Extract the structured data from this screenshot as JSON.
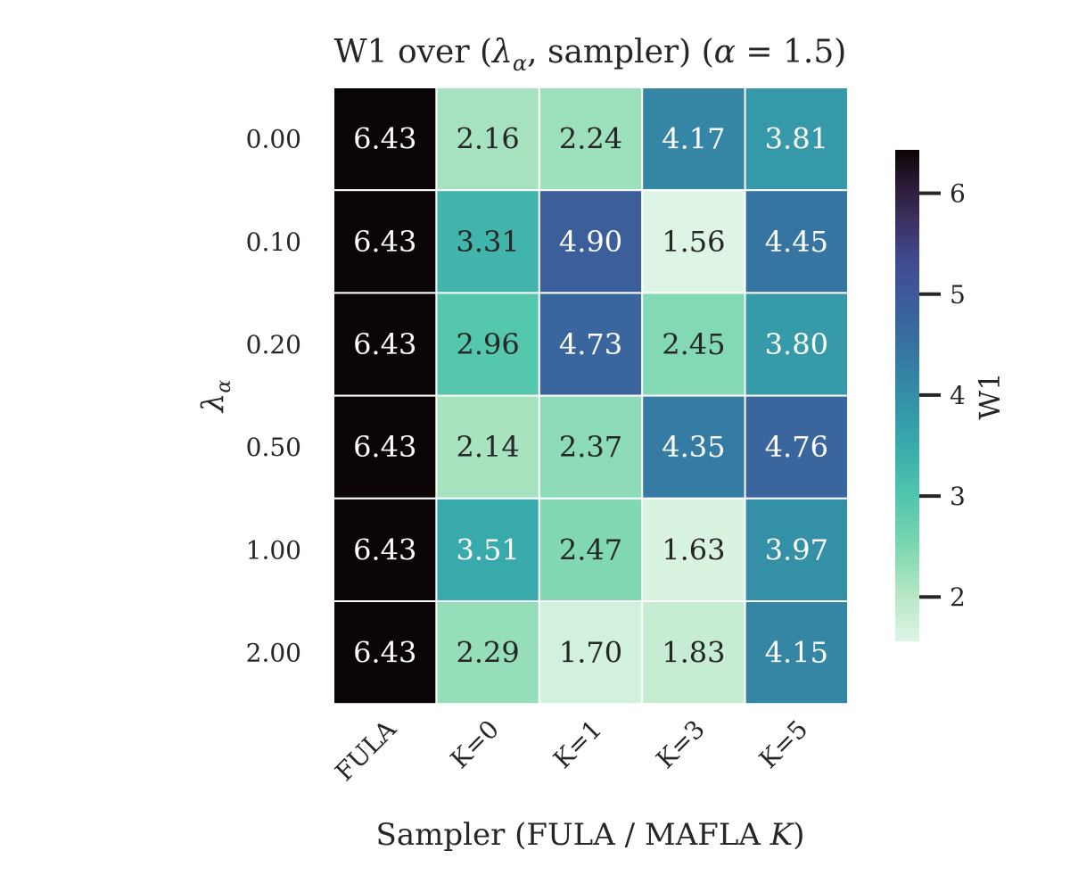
{
  "chart_data": {
    "type": "heatmap",
    "title_prefix": "W1 over (",
    "title_lambda": "λ",
    "title_lambda_sub": "α",
    "title_middle": ", sampler) (",
    "title_alpha": "α",
    "title_suffix": " = 1.5)",
    "ylabel_symbol": "λ",
    "ylabel_sub": "α",
    "xlabel_prefix": "Sampler (FULA / MAFLA ",
    "xlabel_italic": "K",
    "xlabel_suffix": ")",
    "row_labels": [
      "0.00",
      "0.10",
      "0.20",
      "0.50",
      "1.00",
      "2.00"
    ],
    "col_labels": [
      "FULA",
      "K=0",
      "K=1",
      "K=3",
      "K=5"
    ],
    "values": [
      [
        6.43,
        2.16,
        2.24,
        4.17,
        3.81
      ],
      [
        6.43,
        3.31,
        4.9,
        1.56,
        4.45
      ],
      [
        6.43,
        2.96,
        4.73,
        2.45,
        3.8
      ],
      [
        6.43,
        2.14,
        2.37,
        4.35,
        4.76
      ],
      [
        6.43,
        3.51,
        2.47,
        1.63,
        3.97
      ],
      [
        6.43,
        2.29,
        1.7,
        1.83,
        4.15
      ]
    ],
    "value_format_decimals": 2,
    "colorbar": {
      "label": "W1",
      "vmin": 1.56,
      "vmax": 6.43,
      "ticks": [
        2,
        3,
        4,
        5,
        6
      ],
      "tick_labels": [
        "2",
        "3",
        "4",
        "5",
        "6"
      ],
      "colormap": "mako_r",
      "colormap_stops": [
        {
          "t": 0.0,
          "color": "#def5e5"
        },
        {
          "t": 0.1,
          "color": "#b3e6c4"
        },
        {
          "t": 0.2,
          "color": "#79d6b0"
        },
        {
          "t": 0.3,
          "color": "#4fc5ad"
        },
        {
          "t": 0.4,
          "color": "#38aaac"
        },
        {
          "t": 0.5,
          "color": "#348fa7"
        },
        {
          "t": 0.6,
          "color": "#3673a1"
        },
        {
          "t": 0.7,
          "color": "#3d5a9a"
        },
        {
          "t": 0.78,
          "color": "#40498e"
        },
        {
          "t": 0.86,
          "color": "#3b2f5e"
        },
        {
          "t": 0.93,
          "color": "#2a1a35"
        },
        {
          "t": 1.0,
          "color": "#0b0405"
        }
      ]
    },
    "text_dark_color": "#262626",
    "text_light_color": "#ffffff"
  }
}
